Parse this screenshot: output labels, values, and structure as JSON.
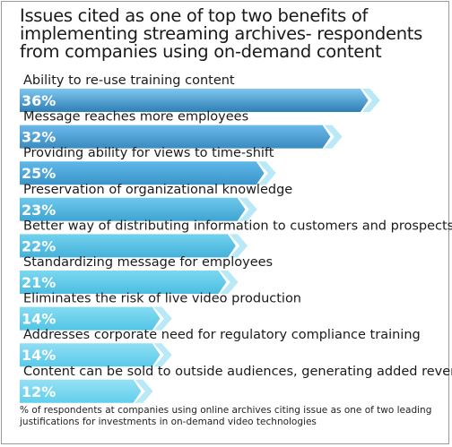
{
  "title_lines": [
    "Issues cited as one of top two benefits of",
    "implementing streaming archives- respondents",
    "from companies using on-demand content"
  ],
  "footnote": "% of respondents at companies using online archives citing issue as one of two leading justifications for investments in on-demand video technologies",
  "colors": {
    "bar_top": [
      "#7dc6f0",
      "#6bb9e9",
      "#5fb8ea",
      "#6dc9ec",
      "#72d2ee",
      "#7dd8f0",
      "#86dcf2",
      "#8fdef3",
      "#96e0f4"
    ],
    "bar_bottom": [
      "#2f7fb4",
      "#3a8bc0",
      "#3b95c8",
      "#3fa4d2",
      "#45b1da",
      "#4bbde1",
      "#52c5e6",
      "#5acaea",
      "#62cfec"
    ],
    "tip": "#b9e8f7",
    "value_text": "#ffffff"
  },
  "chart_data": {
    "type": "bar",
    "orientation": "horizontal",
    "categories": [
      "Ability to re-use training content",
      "Message reaches more employees",
      "Providing ability for views to time-shift",
      "Preservation of organizational knowledge",
      "Better way of distributing information to customers and prospects",
      "Standardizing message for employees",
      "Eliminates the risk of live video production",
      "Addresses corporate need for regulatory compliance training",
      "Content can be sold to outside audiences, generating added revenue"
    ],
    "values": [
      36,
      32,
      25,
      23,
      22,
      21,
      14,
      14,
      12
    ],
    "value_labels": [
      "36%",
      "32%",
      "25%",
      "23%",
      "22%",
      "21%",
      "14%",
      "14%",
      "12%"
    ],
    "xlim": [
      0,
      40
    ],
    "grid": false,
    "legend": "none"
  }
}
